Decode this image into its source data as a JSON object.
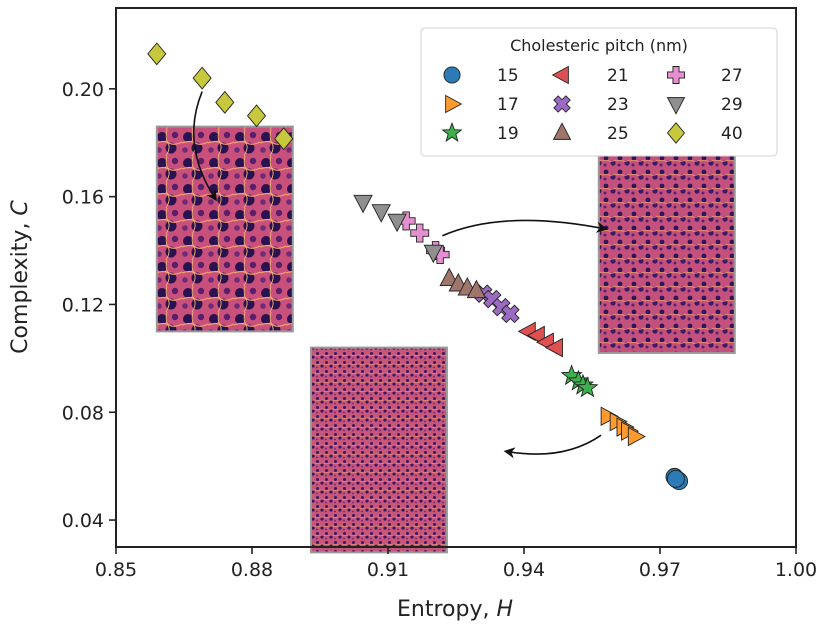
{
  "chart_data": {
    "type": "scatter",
    "title": "",
    "xlabel": "Entropy, ",
    "xlabel_italic": "H",
    "ylabel": "Complexity, ",
    "ylabel_italic": "C",
    "xlim": [
      0.85,
      1.0
    ],
    "ylim": [
      0.03,
      0.23
    ],
    "xticks": [
      0.85,
      0.88,
      0.91,
      0.94,
      0.97,
      1.0
    ],
    "xtick_labels": [
      "0.85",
      "0.88",
      "0.91",
      "0.94",
      "0.97",
      "1.00"
    ],
    "yticks": [
      0.04,
      0.08,
      0.12,
      0.16,
      0.2
    ],
    "ytick_labels": [
      "0.04",
      "0.08",
      "0.12",
      "0.16",
      "0.20"
    ],
    "grid": false,
    "legend": {
      "title": "Cholesteric pitch (nm)",
      "placement": "top-right",
      "columns": 3
    },
    "series": [
      {
        "name": "15",
        "marker": "circle",
        "color": "#2c7bb6",
        "points": [
          [
            0.9732,
            0.056
          ],
          [
            0.9738,
            0.055
          ],
          [
            0.9742,
            0.0545
          ],
          [
            0.9735,
            0.0553
          ]
        ]
      },
      {
        "name": "17",
        "marker": "triangle-right",
        "color": "#ff9a2e",
        "points": [
          [
            0.9585,
            0.0785
          ],
          [
            0.9605,
            0.0765
          ],
          [
            0.962,
            0.0745
          ],
          [
            0.963,
            0.073
          ],
          [
            0.9645,
            0.071
          ]
        ]
      },
      {
        "name": "19",
        "marker": "star",
        "color": "#3cb04a",
        "points": [
          [
            0.9505,
            0.0935
          ],
          [
            0.952,
            0.0915
          ],
          [
            0.953,
            0.09
          ],
          [
            0.954,
            0.089
          ]
        ]
      },
      {
        "name": "21",
        "marker": "triangle-left",
        "color": "#e05050",
        "points": [
          [
            0.941,
            0.11
          ],
          [
            0.943,
            0.1085
          ],
          [
            0.945,
            0.106
          ],
          [
            0.947,
            0.104
          ]
        ]
      },
      {
        "name": "23",
        "marker": "x-thick",
        "color": "#9b6ac2",
        "points": [
          [
            0.931,
            0.124
          ],
          [
            0.933,
            0.122
          ],
          [
            0.935,
            0.119
          ],
          [
            0.937,
            0.1165
          ]
        ]
      },
      {
        "name": "25",
        "marker": "triangle-up",
        "color": "#a0766a",
        "points": [
          [
            0.9235,
            0.1295
          ],
          [
            0.9255,
            0.1275
          ],
          [
            0.9275,
            0.126
          ],
          [
            0.9295,
            0.125
          ]
        ]
      },
      {
        "name": "27",
        "marker": "plus-thick",
        "color": "#e58fd0",
        "points": [
          [
            0.914,
            0.151
          ],
          [
            0.917,
            0.1465
          ],
          [
            0.9205,
            0.14
          ],
          [
            0.9215,
            0.1385
          ]
        ]
      },
      {
        "name": "29",
        "marker": "triangle-down",
        "color": "#8f8f8f",
        "points": [
          [
            0.9045,
            0.158
          ],
          [
            0.9085,
            0.1545
          ],
          [
            0.912,
            0.151
          ],
          [
            0.92,
            0.1395
          ]
        ]
      },
      {
        "name": "40",
        "marker": "diamond",
        "color": "#c8c83c",
        "points": [
          [
            0.859,
            0.213
          ],
          [
            0.869,
            0.204
          ],
          [
            0.874,
            0.195
          ],
          [
            0.881,
            0.19
          ],
          [
            0.887,
            0.1815
          ]
        ]
      }
    ],
    "insets": [
      {
        "anchor": [
          0.874,
          0.148
        ],
        "width": 0.03,
        "height": 0.076,
        "tone": "coarse"
      },
      {
        "anchor": [
          0.9715,
          0.1395
        ],
        "width": 0.03,
        "height": 0.075,
        "tone": "medium"
      },
      {
        "anchor": [
          0.908,
          0.066
        ],
        "width": 0.03,
        "height": 0.076,
        "tone": "fine"
      }
    ],
    "arrows": [
      {
        "from": [
          0.869,
          0.199
        ],
        "to": [
          0.872,
          0.159
        ],
        "bend": "left"
      },
      {
        "from": [
          0.922,
          0.1455
        ],
        "to": [
          0.958,
          0.148
        ],
        "bend": "up"
      },
      {
        "from": [
          0.957,
          0.0715
        ],
        "to": [
          0.936,
          0.0655
        ],
        "bend": "down"
      }
    ]
  }
}
